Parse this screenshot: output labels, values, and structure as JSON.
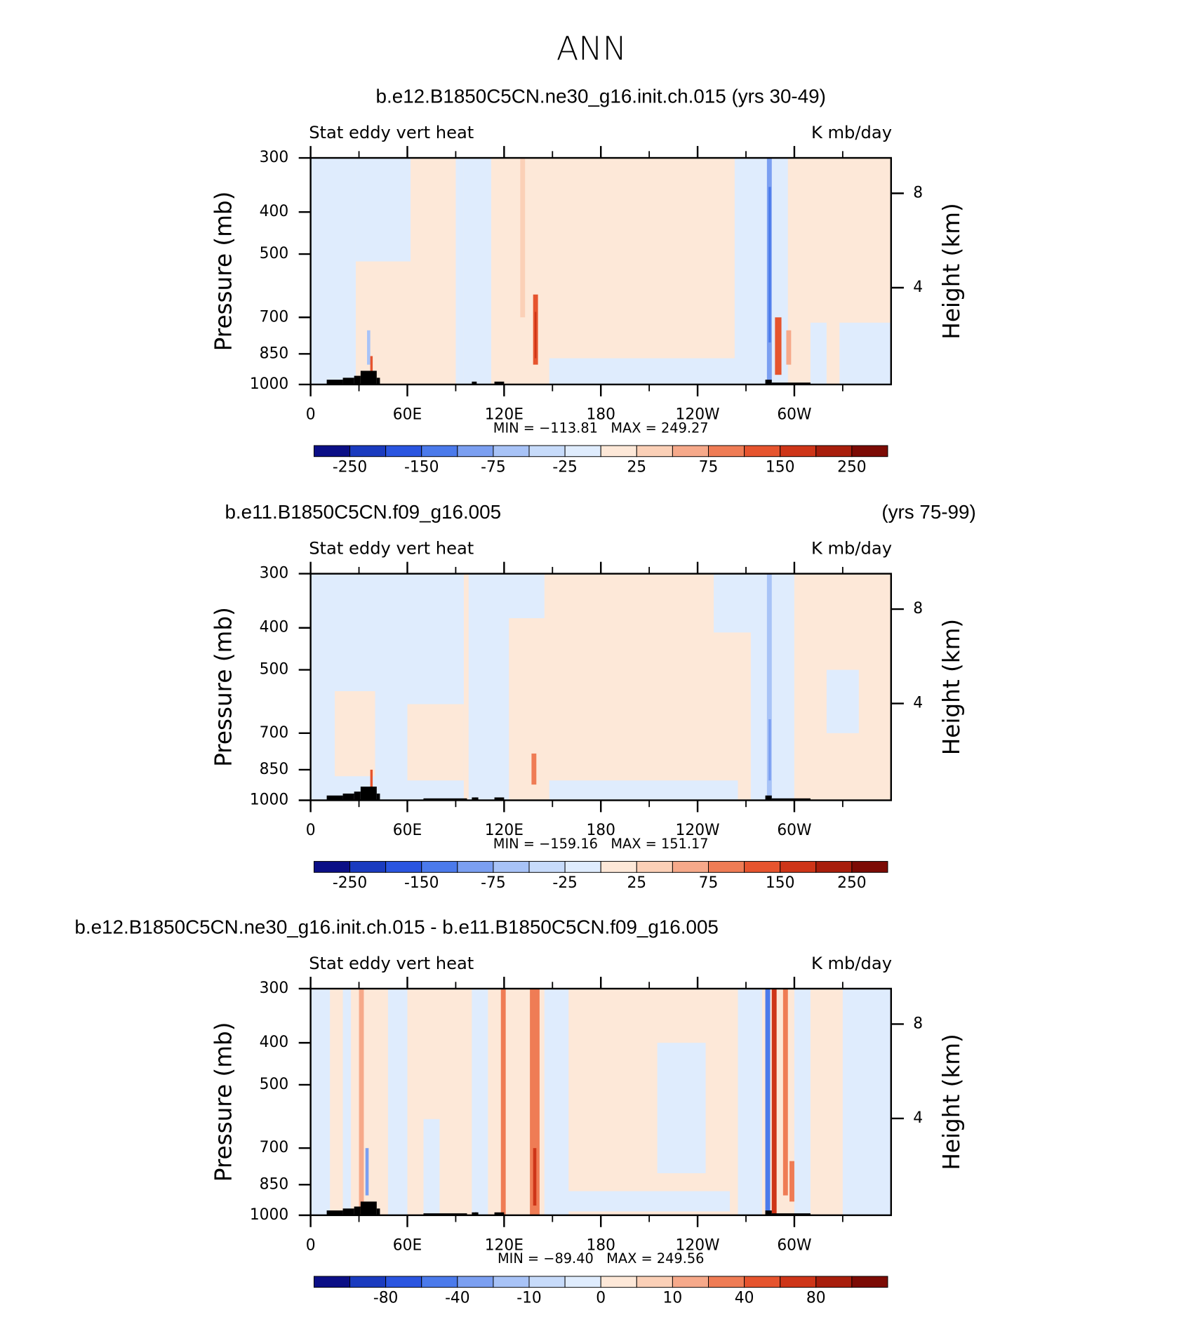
{
  "title": "ANN",
  "chart_data": [
    {
      "type": "contour",
      "title": "b.e12.B1850C5CN.ne30_g16.init.ch.015 (yrs 30-49)",
      "left_string": "Stat eddy vert heat",
      "right_string": "K mb/day",
      "ylabel": "Pressure (mb)",
      "y2label": "Height (km)",
      "ylim": [
        300,
        1000
      ],
      "ylog": true,
      "yticks": [
        300,
        400,
        500,
        700,
        850,
        1000
      ],
      "y2lim": [
        -0.1,
        9.5
      ],
      "y2ticks": [
        4,
        8
      ],
      "xlim": [
        0,
        360
      ],
      "xticks": [
        0,
        {
          "value": 60,
          "label": "60E"
        },
        {
          "value": 120,
          "label": "120E"
        },
        180,
        {
          "value": 240,
          "label": "120W"
        },
        {
          "value": 300,
          "label": "60W"
        }
      ],
      "xminor": [
        30,
        90,
        150,
        210,
        270,
        330
      ],
      "stats": "MIN = −113.81   MAX = 249.27",
      "colorbar_colors": [
        "#0b0f86",
        "#1a3bbf",
        "#2a55e0",
        "#4b7aeb",
        "#7b9ff1",
        "#a8c3f7",
        "#c7dbfa",
        "#dfecfd",
        "#fde8d8",
        "#fbd0b7",
        "#f6a98a",
        "#ef7c55",
        "#e6542e",
        "#ce3518",
        "#a81e0c",
        "#7c0b05"
      ],
      "colorbar_ticks": [
        -250,
        null,
        -150,
        null,
        -75,
        null,
        -25,
        null,
        25,
        null,
        75,
        null,
        150,
        null,
        250
      ]
    },
    {
      "type": "contour",
      "title": "b.e11.B1850C5CN.f09_g16.005",
      "title_right": "(yrs 75-99)",
      "left_string": "Stat eddy vert heat",
      "right_string": "K mb/day",
      "ylabel": "Pressure (mb)",
      "y2label": "Height (km)",
      "ylim": [
        300,
        1000
      ],
      "ylog": true,
      "yticks": [
        300,
        400,
        500,
        700,
        850,
        1000
      ],
      "y2lim": [
        -0.1,
        9.5
      ],
      "y2ticks": [
        4,
        8
      ],
      "xlim": [
        0,
        360
      ],
      "xticks": [
        0,
        {
          "value": 60,
          "label": "60E"
        },
        {
          "value": 120,
          "label": "120E"
        },
        180,
        {
          "value": 240,
          "label": "120W"
        },
        {
          "value": 300,
          "label": "60W"
        }
      ],
      "xminor": [
        30,
        90,
        150,
        210,
        270,
        330
      ],
      "stats": "MIN = −159.16   MAX = 151.17",
      "colorbar_colors": [
        "#0b0f86",
        "#1a3bbf",
        "#2a55e0",
        "#4b7aeb",
        "#7b9ff1",
        "#a8c3f7",
        "#c7dbfa",
        "#dfecfd",
        "#fde8d8",
        "#fbd0b7",
        "#f6a98a",
        "#ef7c55",
        "#e6542e",
        "#ce3518",
        "#a81e0c",
        "#7c0b05"
      ],
      "colorbar_ticks": [
        -250,
        null,
        -150,
        null,
        -75,
        null,
        -25,
        null,
        25,
        null,
        75,
        null,
        150,
        null,
        250
      ]
    },
    {
      "type": "contour",
      "title": "b.e12.B1850C5CN.ne30_g16.init.ch.015 - b.e11.B1850C5CN.f09_g16.005",
      "left_string": "Stat eddy vert heat",
      "right_string": "K mb/day",
      "ylabel": "Pressure (mb)",
      "y2label": "Height (km)",
      "ylim": [
        300,
        1000
      ],
      "ylog": true,
      "yticks": [
        300,
        400,
        500,
        700,
        850,
        1000
      ],
      "y2lim": [
        -0.1,
        9.5
      ],
      "y2ticks": [
        4,
        8
      ],
      "xlim": [
        0,
        360
      ],
      "xticks": [
        0,
        {
          "value": 60,
          "label": "60E"
        },
        {
          "value": 120,
          "label": "120E"
        },
        180,
        {
          "value": 240,
          "label": "120W"
        },
        {
          "value": 300,
          "label": "60W"
        }
      ],
      "xminor": [
        30,
        90,
        150,
        210,
        270,
        330
      ],
      "stats": "MIN = −89.40   MAX = 249.56",
      "colorbar_colors": [
        "#0b0f86",
        "#1a3bbf",
        "#2a55e0",
        "#4b7aeb",
        "#7b9ff1",
        "#a8c3f7",
        "#c7dbfa",
        "#dfecfd",
        "#fde8d8",
        "#fbd0b7",
        "#f6a98a",
        "#ef7c55",
        "#e6542e",
        "#ce3518",
        "#a81e0c",
        "#7c0b05"
      ],
      "colorbar_ticks": [
        null,
        -80,
        null,
        -40,
        null,
        -10,
        null,
        0,
        null,
        10,
        null,
        40,
        null,
        80,
        null
      ]
    }
  ]
}
